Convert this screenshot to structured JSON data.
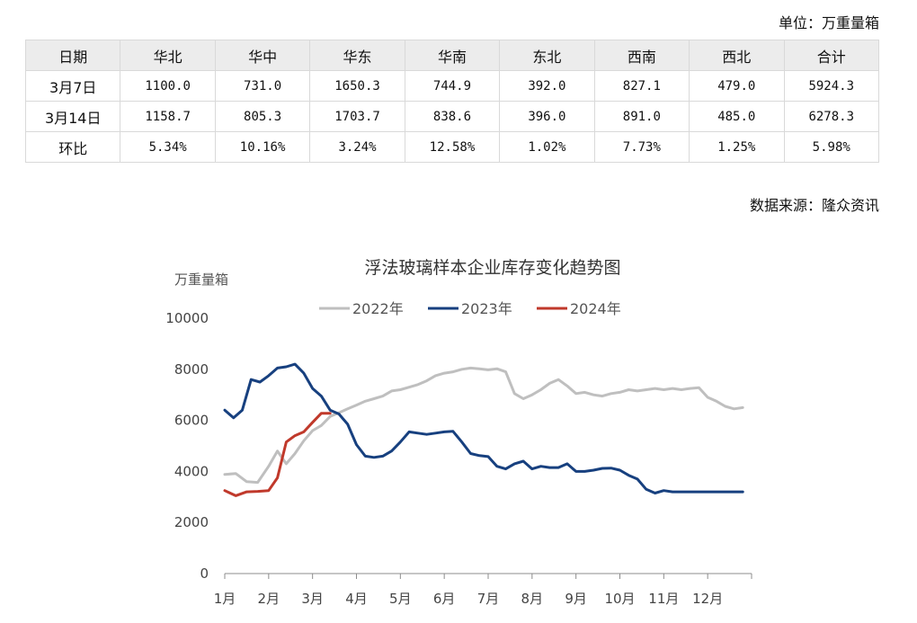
{
  "unit_label": "单位：万重量箱",
  "source_label": "数据来源：隆众资讯",
  "table": {
    "headers": [
      "日期",
      "华北",
      "华中",
      "华东",
      "华南",
      "东北",
      "西南",
      "西北",
      "合计"
    ],
    "rows": [
      [
        "3月7日",
        "1100.0",
        "731.0",
        "1650.3",
        "744.9",
        "392.0",
        "827.1",
        "479.0",
        "5924.3"
      ],
      [
        "3月14日",
        "1158.7",
        "805.3",
        "1703.7",
        "838.6",
        "396.0",
        "891.0",
        "485.0",
        "6278.3"
      ],
      [
        "环比",
        "5.34%",
        "10.16%",
        "3.24%",
        "12.58%",
        "1.02%",
        "7.73%",
        "1.25%",
        "5.98%"
      ]
    ]
  },
  "chart_data": {
    "type": "line",
    "title": "浮法玻璃样本企业库存变化趋势图",
    "ylabel": "万重量箱",
    "xlabel": "",
    "ylim": [
      0,
      10000
    ],
    "yticks": [
      0,
      2000,
      4000,
      6000,
      8000,
      10000
    ],
    "xlim": [
      0,
      12
    ],
    "xtick_labels": [
      "1月",
      "2月",
      "3月",
      "4月",
      "5月",
      "6月",
      "7月",
      "8月",
      "9月",
      "10月",
      "11月",
      "12月"
    ],
    "legend_position": "top-center",
    "series": [
      {
        "name": "2022年",
        "color": "#bfbfbf",
        "x": [
          0,
          0.25,
          0.5,
          0.75,
          1.0,
          1.2,
          1.4,
          1.6,
          1.8,
          2.0,
          2.2,
          2.4,
          2.6,
          2.8,
          3.0,
          3.2,
          3.4,
          3.6,
          3.8,
          4.0,
          4.2,
          4.4,
          4.6,
          4.8,
          5.0,
          5.2,
          5.4,
          5.6,
          5.8,
          6.0,
          6.2,
          6.4,
          6.6,
          6.8,
          7.0,
          7.2,
          7.4,
          7.6,
          7.8,
          8.0,
          8.2,
          8.4,
          8.6,
          8.8,
          9.0,
          9.2,
          9.4,
          9.6,
          9.8,
          10.0,
          10.2,
          10.4,
          10.6,
          10.8,
          11.0,
          11.2,
          11.4,
          11.6,
          11.8
        ],
        "values": [
          3880,
          3920,
          3600,
          3570,
          4200,
          4800,
          4300,
          4700,
          5200,
          5600,
          5800,
          6150,
          6300,
          6450,
          6600,
          6750,
          6850,
          6950,
          7150,
          7200,
          7300,
          7400,
          7550,
          7750,
          7850,
          7900,
          8000,
          8050,
          8020,
          7980,
          8020,
          7900,
          7050,
          6850,
          7000,
          7200,
          7450,
          7600,
          7350,
          7050,
          7100,
          7000,
          6950,
          7050,
          7100,
          7200,
          7150,
          7200,
          7250,
          7200,
          7250,
          7200,
          7250,
          7280,
          6900,
          6750,
          6550,
          6450,
          6500
        ]
      },
      {
        "name": "2023年",
        "color": "#17407f",
        "x": [
          0,
          0.2,
          0.4,
          0.6,
          0.8,
          1.0,
          1.2,
          1.4,
          1.6,
          1.8,
          2.0,
          2.2,
          2.4,
          2.6,
          2.8,
          3.0,
          3.2,
          3.4,
          3.6,
          3.8,
          4.0,
          4.2,
          4.4,
          4.6,
          4.8,
          5.0,
          5.2,
          5.4,
          5.6,
          5.8,
          6.0,
          6.2,
          6.4,
          6.6,
          6.8,
          7.0,
          7.2,
          7.4,
          7.6,
          7.8,
          8.0,
          8.2,
          8.4,
          8.6,
          8.8,
          9.0,
          9.2,
          9.4,
          9.6,
          9.8,
          10.0,
          10.2,
          10.4,
          10.6,
          10.8,
          11.0,
          11.2,
          11.4,
          11.6,
          11.8
        ],
        "values": [
          6400,
          6100,
          6400,
          7600,
          7500,
          7750,
          8050,
          8100,
          8200,
          7850,
          7250,
          6950,
          6400,
          6250,
          5850,
          5050,
          4600,
          4550,
          4600,
          4800,
          5150,
          5550,
          5500,
          5450,
          5500,
          5550,
          5570,
          5150,
          4700,
          4620,
          4580,
          4200,
          4100,
          4300,
          4400,
          4100,
          4200,
          4150,
          4150,
          4300,
          4000,
          4000,
          4050,
          4120,
          4130,
          4050,
          3850,
          3700,
          3300,
          3150,
          3250,
          3200,
          3200,
          3200,
          3200,
          3200,
          3200,
          3200,
          3200,
          3200
        ]
      },
      {
        "name": "2024年",
        "color": "#c0392b",
        "x": [
          0,
          0.25,
          0.5,
          0.75,
          1.0,
          1.2,
          1.4,
          1.6,
          1.8,
          2.0,
          2.2,
          2.4
        ],
        "values": [
          3250,
          3050,
          3200,
          3220,
          3250,
          3750,
          5150,
          5400,
          5550,
          5924,
          6278,
          6278
        ]
      }
    ]
  }
}
